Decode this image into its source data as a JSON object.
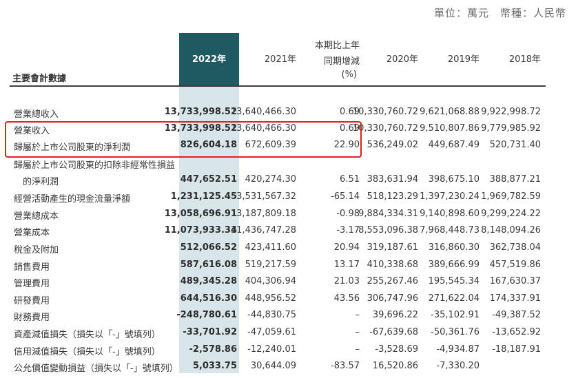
{
  "unit_note": "單位：萬元　幣種：人民幣",
  "header": {
    "title": "主要會計數據",
    "y2022": "2022年",
    "y2021": "2021年",
    "pct_line1": "本期比上年",
    "pct_line2": "同期增減",
    "pct_line3": "(%)",
    "y2020": "2020年",
    "y2019": "2019年",
    "y2018": "2018年"
  },
  "rows": [
    {
      "label": "營業總收入",
      "v2022": "13,733,998.52",
      "v2021": "13,640,466.30",
      "pct": "0.69",
      "v2020": "10,330,760.72",
      "v2019": "9,621,068.88",
      "v2018": "9,922,998.72"
    },
    {
      "label": "營業收入",
      "v2022": "13,733,998.52",
      "v2021": "13,640,466.30",
      "pct": "0.69",
      "v2020": "10,330,760.72",
      "v2019": "9,510,807.86",
      "v2018": "9,779,985.92"
    },
    {
      "label": "歸屬於上市公司股東的淨利潤",
      "v2022": "826,604.18",
      "v2021": "672,609.39",
      "pct": "22.90",
      "v2020": "536,249.02",
      "v2019": "449,687.49",
      "v2018": "520,731.40"
    },
    {
      "label": "歸屬於上市公司股東的扣除非經常性損益",
      "v2022": "",
      "v2021": "",
      "pct": "",
      "v2020": "",
      "v2019": "",
      "v2018": ""
    },
    {
      "label": "　的淨利潤",
      "v2022": "447,652.51",
      "v2021": "420,274.30",
      "pct": "6.51",
      "v2020": "383,631.94",
      "v2019": "398,675.10",
      "v2018": "388,877.21"
    },
    {
      "label": "經營活動產生的現金流量淨額",
      "v2022": "1,231,125.45",
      "v2021": "3,531,567.32",
      "pct": "-65.14",
      "v2020": "518,123.29",
      "v2019": "1,397,230.24",
      "v2018": "1,969,782.59"
    },
    {
      "label": "營業總成本",
      "v2022": "13,058,696.91",
      "v2021": "13,187,809.18",
      "pct": "-0.98",
      "v2020": "9,884,334.31",
      "v2019": "9,140,898.60",
      "v2018": "9,299,224.22"
    },
    {
      "label": "營業成本",
      "v2022": "11,073,933.34",
      "v2021": "11,436,747.28",
      "pct": "-3.17",
      "v2020": "8,553,096.38",
      "v2019": "7,968,448.73",
      "v2018": "8,148,094.26"
    },
    {
      "label": "稅金及附加",
      "v2022": "512,066.52",
      "v2021": "423,411.60",
      "pct": "20.94",
      "v2020": "319,187.61",
      "v2019": "316,860.30",
      "v2018": "362,738.04"
    },
    {
      "label": "銷售費用",
      "v2022": "587,616.08",
      "v2021": "519,217.59",
      "pct": "13.17",
      "v2020": "410,338.68",
      "v2019": "389,666.99",
      "v2018": "457,519.86"
    },
    {
      "label": "管理費用",
      "v2022": "489,345.28",
      "v2021": "404,306.94",
      "pct": "21.03",
      "v2020": "255,267.46",
      "v2019": "195,545.34",
      "v2018": "167,630.37"
    },
    {
      "label": "研發費用",
      "v2022": "644,516.30",
      "v2021": "448,956.52",
      "pct": "43.56",
      "v2020": "306,747.96",
      "v2019": "271,622.04",
      "v2018": "174,337.91"
    },
    {
      "label": "財務費用",
      "v2022": "-248,780.61",
      "v2021": "-44,830.75",
      "pct": "–",
      "v2020": "39,696.22",
      "v2019": "-35,102.91",
      "v2018": "-49,387.52"
    },
    {
      "label": "資產減值損失（損失以「-」號填列）",
      "v2022": "-33,701.92",
      "v2021": "-47,059.61",
      "pct": "–",
      "v2020": "-67,639.68",
      "v2019": "-50,361.76",
      "v2018": "-13,652.92"
    },
    {
      "label": "信用減值損失（損失以「-」號填列）",
      "v2022": "-2,578.86",
      "v2021": "-12,240.01",
      "pct": "–",
      "v2020": "-3,528.69",
      "v2019": "-4,934.87",
      "v2018": "-18,187.91"
    },
    {
      "label": "公允價值變動損益（損失以「-」號填列）",
      "v2022": "5,033.75",
      "v2021": "30,644.09",
      "pct": "-83.57",
      "v2020": "16,520.86",
      "v2019": "-7,330.20",
      "v2018": ""
    }
  ]
}
